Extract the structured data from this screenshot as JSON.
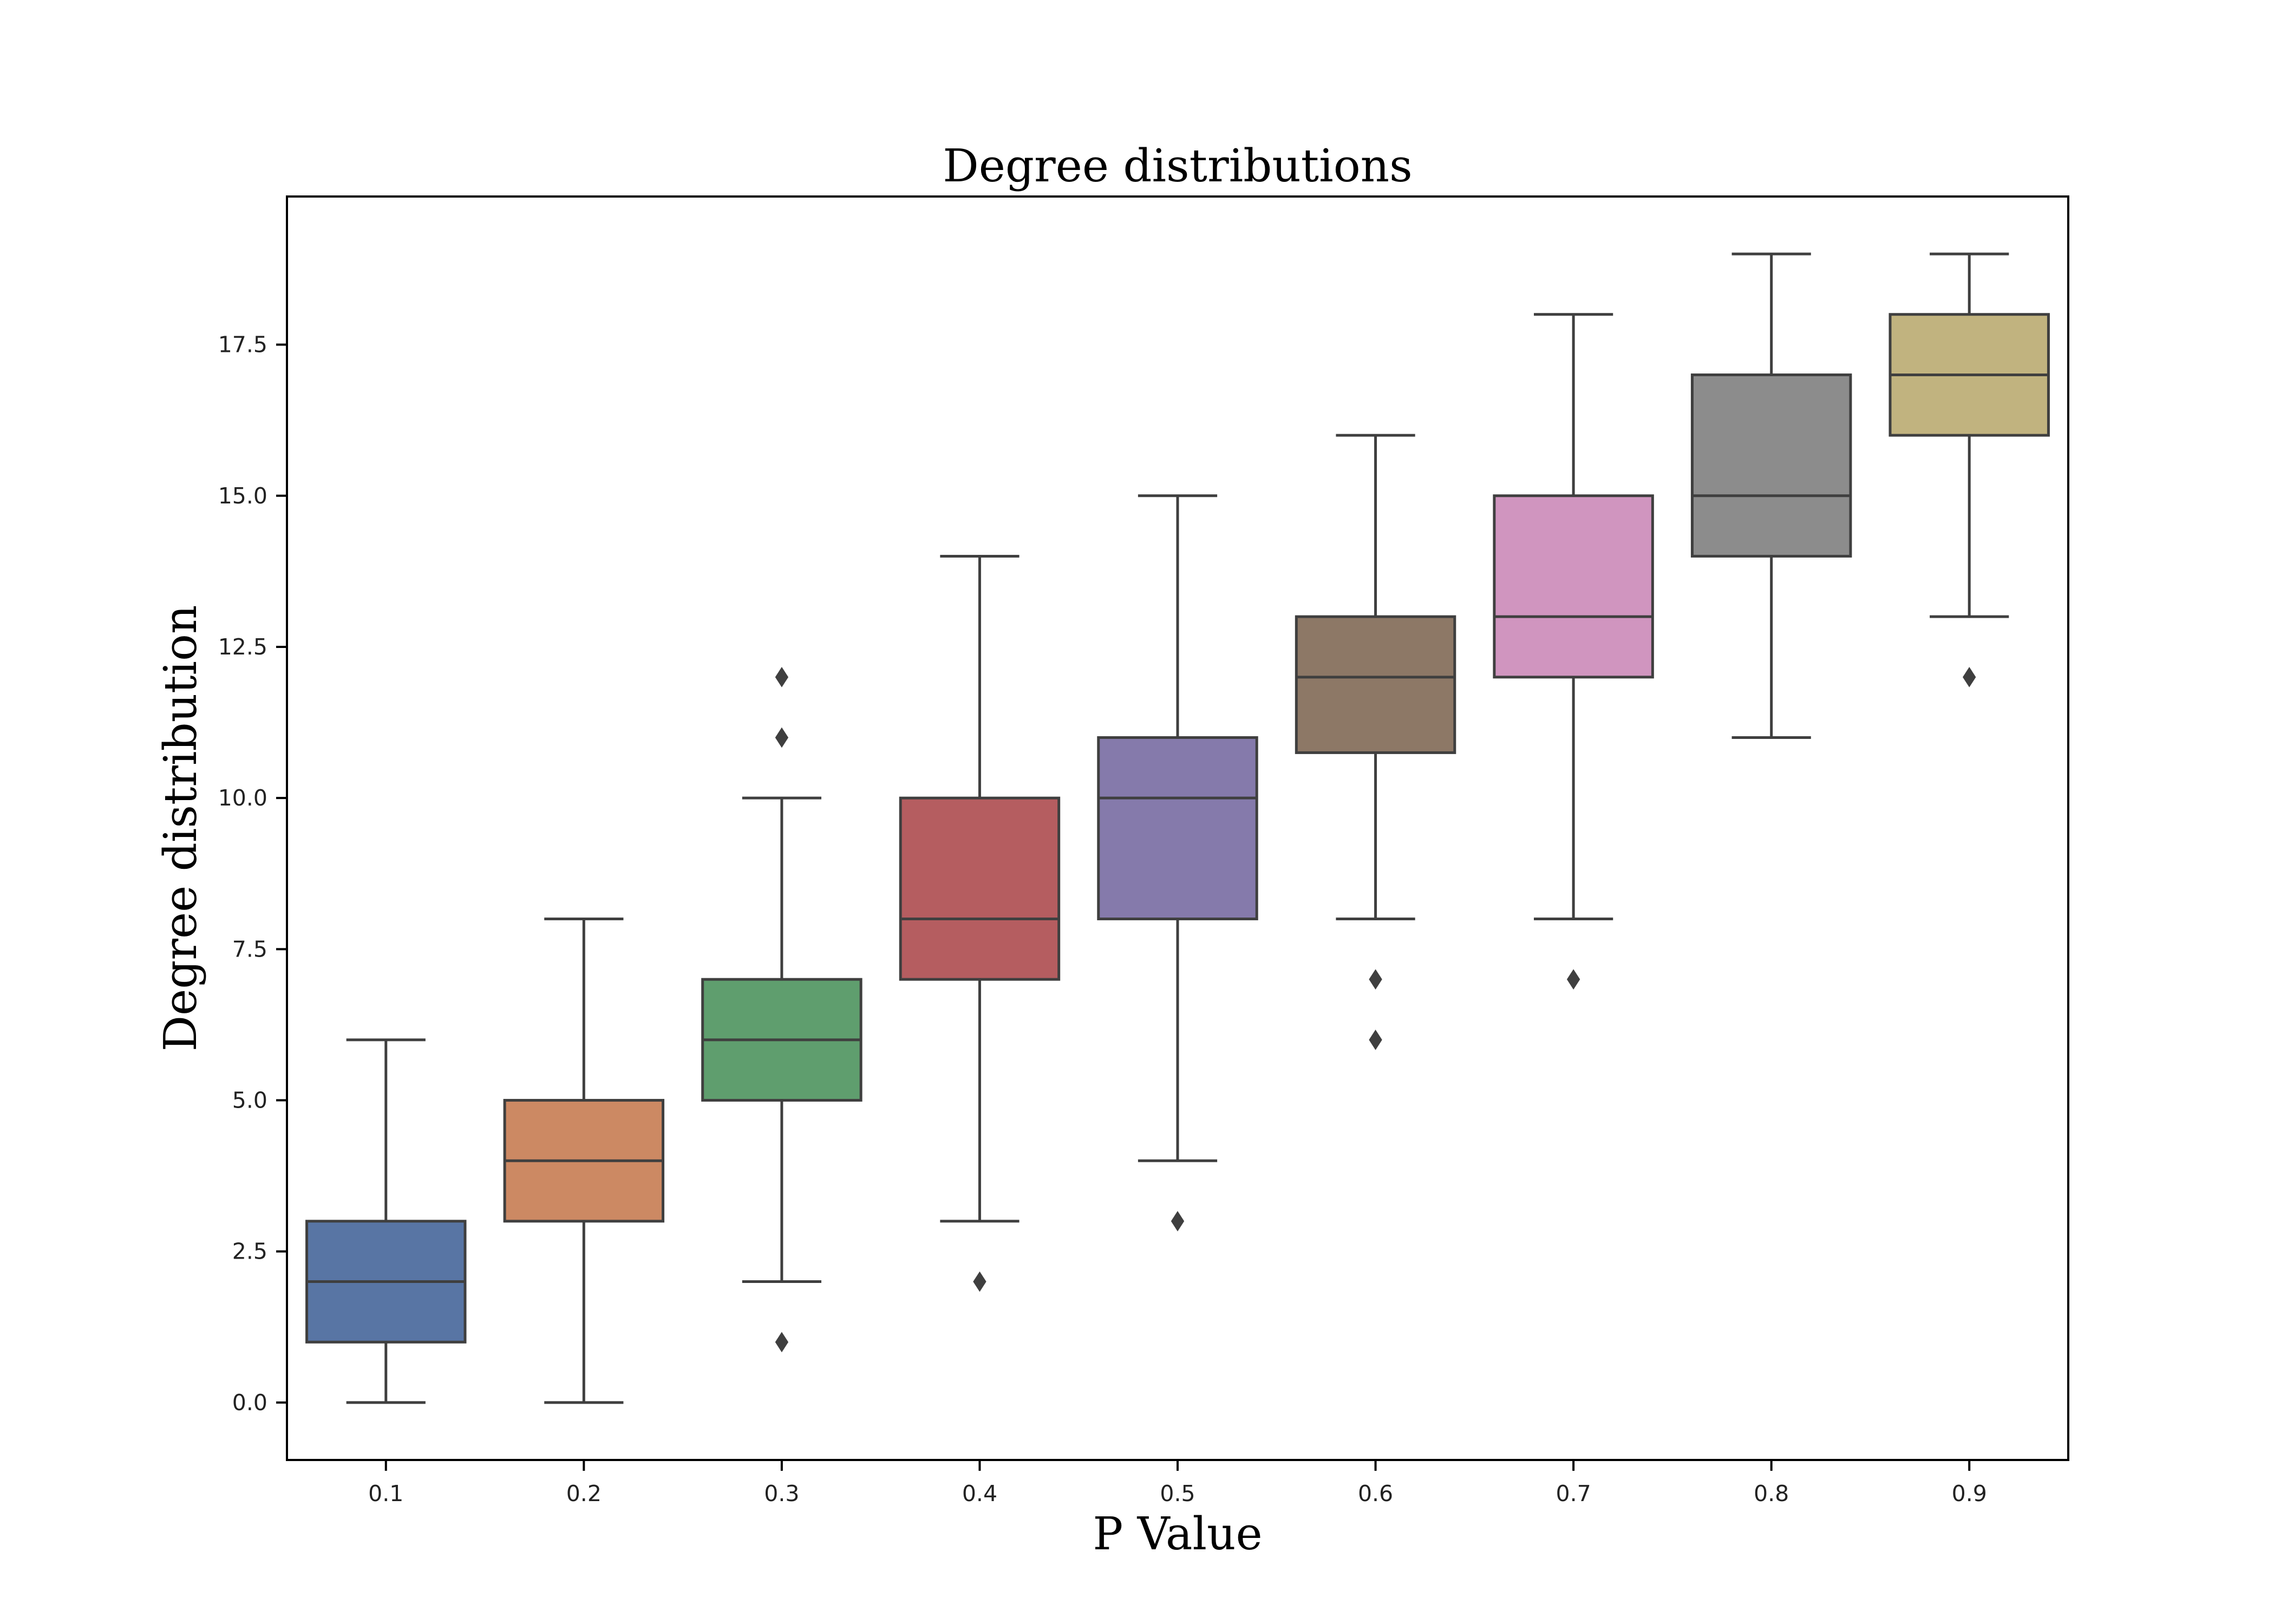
{
  "chart_data": {
    "type": "box",
    "title": "Degree distributions",
    "xlabel": "P Value",
    "ylabel": "Degree distribution",
    "ylim": [
      -0.95,
      19.95
    ],
    "yticks": [
      "0.0",
      "2.5",
      "5.0",
      "7.5",
      "10.0",
      "12.5",
      "15.0",
      "17.5"
    ],
    "ytick_values": [
      0,
      2.5,
      5,
      7.5,
      10,
      12.5,
      15,
      17.5
    ],
    "categories": [
      "0.1",
      "0.2",
      "0.3",
      "0.4",
      "0.5",
      "0.6",
      "0.7",
      "0.8",
      "0.9"
    ],
    "grid": false,
    "boxes": [
      {
        "category": "0.1",
        "whisker_low": 0,
        "q1": 1,
        "median": 2,
        "q3": 3,
        "whisker_high": 6,
        "outliers": [],
        "color": "#5875a4"
      },
      {
        "category": "0.2",
        "whisker_low": 0,
        "q1": 3,
        "median": 4,
        "q3": 5,
        "whisker_high": 8,
        "outliers": [],
        "color": "#cc8963"
      },
      {
        "category": "0.3",
        "whisker_low": 2,
        "q1": 5,
        "median": 6,
        "q3": 7,
        "whisker_high": 10,
        "outliers": [
          1,
          11,
          12
        ],
        "color": "#5f9e6e"
      },
      {
        "category": "0.4",
        "whisker_low": 3,
        "q1": 7,
        "median": 8,
        "q3": 10,
        "whisker_high": 14,
        "outliers": [
          2
        ],
        "color": "#b55d60"
      },
      {
        "category": "0.5",
        "whisker_low": 4,
        "q1": 8,
        "median": 10,
        "q3": 11,
        "whisker_high": 15,
        "outliers": [
          3
        ],
        "color": "#857aab"
      },
      {
        "category": "0.6",
        "whisker_low": 8,
        "q1": 10.75,
        "median": 12,
        "q3": 13,
        "whisker_high": 16,
        "outliers": [
          6,
          7
        ],
        "color": "#8d7866"
      },
      {
        "category": "0.7",
        "whisker_low": 8,
        "q1": 12,
        "median": 13,
        "q3": 15,
        "whisker_high": 18,
        "outliers": [
          7
        ],
        "color": "#d095bf"
      },
      {
        "category": "0.8",
        "whisker_low": 11,
        "q1": 14,
        "median": 15,
        "q3": 17,
        "whisker_high": 19,
        "outliers": [],
        "color": "#8c8c8c"
      },
      {
        "category": "0.9",
        "whisker_low": 13,
        "q1": 16,
        "median": 17,
        "q3": 18,
        "whisker_high": 19,
        "outliers": [
          12
        ],
        "color": "#c1b37f"
      }
    ],
    "line_color": "#3f3f3f"
  }
}
